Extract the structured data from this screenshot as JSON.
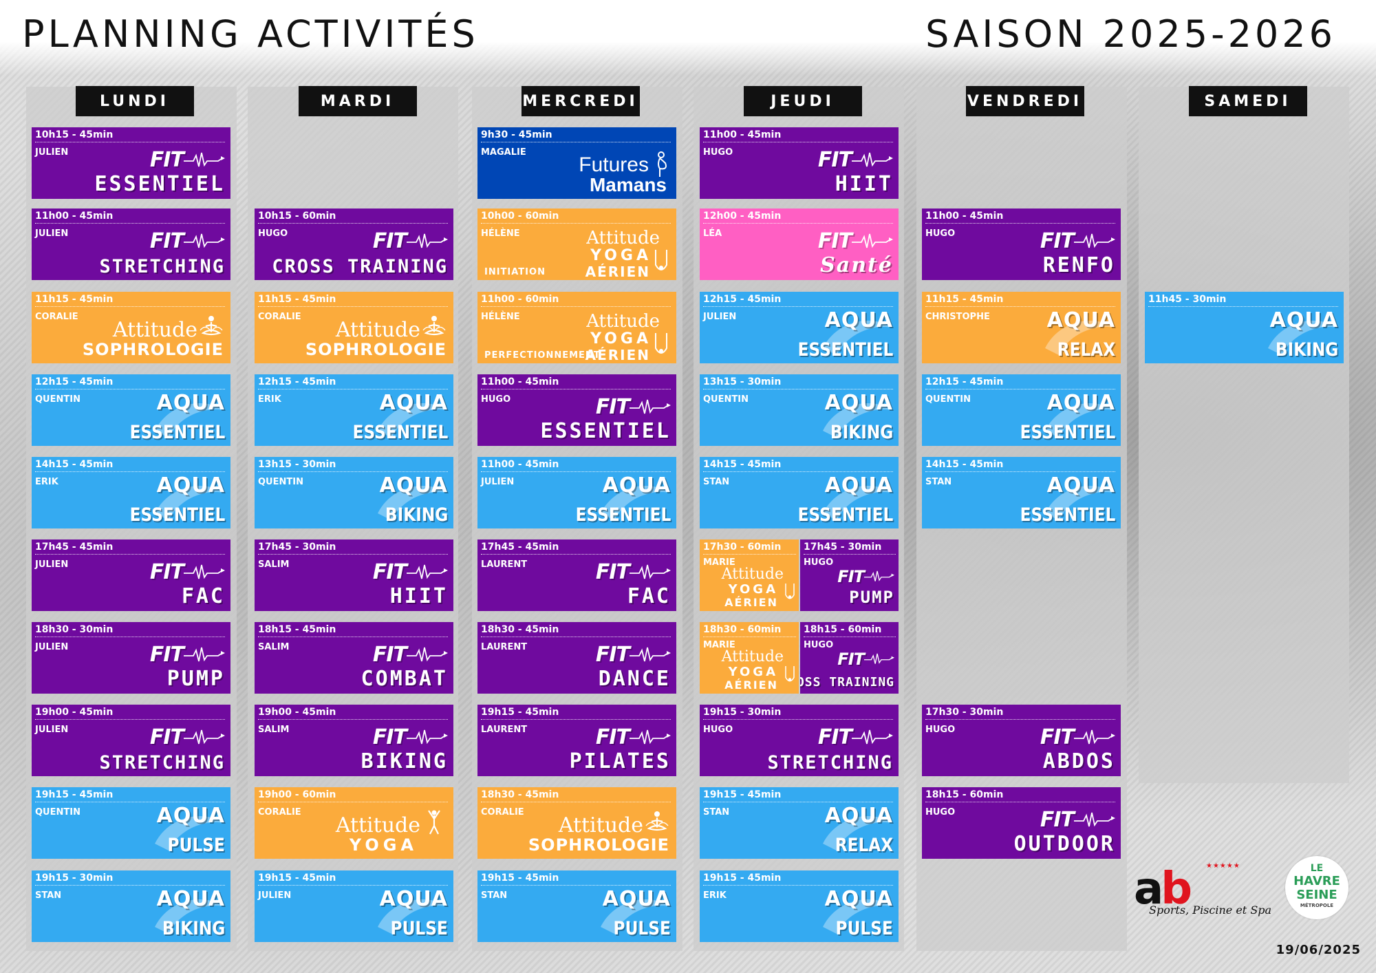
{
  "header": {
    "title_left": "PLANNING ACTIVITÉS",
    "title_right": "SAISON 2025-2026"
  },
  "days": [
    "LUNDI",
    "MARDI",
    "MERCREDI",
    "JEUDI",
    "VENDREDI",
    "SAMEDI"
  ],
  "colors": {
    "fit": "#6f0a9e",
    "attitude": "#fbab3c",
    "aqua": "#34aaf1",
    "sante": "#ff5fc3",
    "futures_mamans": "#0046b5"
  },
  "brand_words": {
    "fit": "FIT",
    "aqua": "AQUA",
    "attitude": "Attitude",
    "futures": "Futures",
    "mamans": "Mamans",
    "yoga": "YOGA",
    "aerien": "AÉRIEN"
  },
  "cards": [
    {
      "day": 0,
      "slot": 0,
      "type": "fit",
      "time": "10h15 - 45min",
      "coach": "JULIEN",
      "name": "ESSENTIEL"
    },
    {
      "day": 0,
      "slot": 1,
      "type": "fit",
      "time": "11h00 - 45min",
      "coach": "JULIEN",
      "name": "STRETCHING"
    },
    {
      "day": 0,
      "slot": 2,
      "type": "att",
      "time": "11h15 - 45min",
      "coach": "CORALIE",
      "name": "SOPHROLOGIE",
      "icon": "lotus-icon"
    },
    {
      "day": 0,
      "slot": 3,
      "type": "aqua",
      "time": "12h15 - 45min",
      "coach": "QUENTIN",
      "name": "ESSENTIEL"
    },
    {
      "day": 0,
      "slot": 4,
      "type": "aqua",
      "time": "14h15 - 45min",
      "coach": "ERIK",
      "name": "ESSENTIEL"
    },
    {
      "day": 0,
      "slot": 5,
      "type": "fit",
      "time": "17h45 - 45min",
      "coach": "JULIEN",
      "name": "FAC"
    },
    {
      "day": 0,
      "slot": 6,
      "type": "fit",
      "time": "18h30 - 30min",
      "coach": "JULIEN",
      "name": "PUMP"
    },
    {
      "day": 0,
      "slot": 7,
      "type": "fit",
      "time": "19h00 - 45min",
      "coach": "JULIEN",
      "name": "STRETCHING"
    },
    {
      "day": 0,
      "slot": 8,
      "type": "aqua",
      "time": "19h15 - 45min",
      "coach": "QUENTIN",
      "name": "PULSE"
    },
    {
      "day": 0,
      "slot": 9,
      "type": "aqua",
      "time": "19h15 - 30min",
      "coach": "STAN",
      "name": "BIKING"
    },
    {
      "day": 1,
      "slot": 1,
      "type": "fit",
      "time": "10h15 - 60min",
      "coach": "HUGO",
      "name": "CROSS TRAINING"
    },
    {
      "day": 1,
      "slot": 2,
      "type": "att",
      "time": "11h15 - 45min",
      "coach": "CORALIE",
      "name": "SOPHROLOGIE",
      "icon": "lotus-icon"
    },
    {
      "day": 1,
      "slot": 3,
      "type": "aqua",
      "time": "12h15 - 45min",
      "coach": "ERIK",
      "name": "ESSENTIEL"
    },
    {
      "day": 1,
      "slot": 4,
      "type": "aqua",
      "time": "13h15 - 30min",
      "coach": "QUENTIN",
      "name": "BIKING"
    },
    {
      "day": 1,
      "slot": 5,
      "type": "fit",
      "time": "17h45 - 30min",
      "coach": "SALIM",
      "name": "HIIT"
    },
    {
      "day": 1,
      "slot": 6,
      "type": "fit",
      "time": "18h15 - 45min",
      "coach": "SALIM",
      "name": "COMBAT"
    },
    {
      "day": 1,
      "slot": 7,
      "type": "fit",
      "time": "19h00 - 45min",
      "coach": "SALIM",
      "name": "BIKING"
    },
    {
      "day": 1,
      "slot": 8,
      "type": "att",
      "time": "19h00 - 60min",
      "coach": "CORALIE",
      "name": "YOGA",
      "icon": "yoga-pose-icon"
    },
    {
      "day": 1,
      "slot": 9,
      "type": "aqua",
      "time": "19h15 - 45min",
      "coach": "JULIEN",
      "name": "PULSE"
    },
    {
      "day": 2,
      "slot": 0,
      "type": "mamans",
      "time": "9h30 - 45min",
      "coach": "MAGALIE"
    },
    {
      "day": 2,
      "slot": 1,
      "type": "yoga",
      "time": "10h00 - 60min",
      "coach": "HÉLÈNE",
      "sub": "INITIATION"
    },
    {
      "day": 2,
      "slot": 2,
      "type": "yoga",
      "time": "11h00 - 60min",
      "coach": "HÉLÈNE",
      "sub": "PERFECTIONNEMENT"
    },
    {
      "day": 2,
      "slot": 3,
      "type": "fit",
      "time": "11h00 - 45min",
      "coach": "HUGO",
      "name": "ESSENTIEL"
    },
    {
      "day": 2,
      "slot": 4,
      "type": "aqua",
      "time": "11h00 - 45min",
      "coach": "JULIEN",
      "name": "ESSENTIEL"
    },
    {
      "day": 2,
      "slot": 5,
      "type": "fit",
      "time": "17h45 - 45min",
      "coach": "LAURENT",
      "name": "FAC"
    },
    {
      "day": 2,
      "slot": 6,
      "type": "fit",
      "time": "18h30 - 45min",
      "coach": "LAURENT",
      "name": "DANCE"
    },
    {
      "day": 2,
      "slot": 7,
      "type": "fit",
      "time": "19h15 - 45min",
      "coach": "LAURENT",
      "name": "PILATES"
    },
    {
      "day": 2,
      "slot": 8,
      "type": "att",
      "time": "18h30 - 45min",
      "coach": "CORALIE",
      "name": "SOPHROLOGIE",
      "icon": "lotus-icon"
    },
    {
      "day": 2,
      "slot": 9,
      "type": "aqua",
      "time": "19h15 - 45min",
      "coach": "STAN",
      "name": "PULSE"
    },
    {
      "day": 3,
      "slot": 0,
      "type": "fit",
      "time": "11h00 - 45min",
      "coach": "HUGO",
      "name": "HIIT"
    },
    {
      "day": 3,
      "slot": 1,
      "type": "sante",
      "time": "12h00 - 45min",
      "coach": "LÉA",
      "name": "Santé"
    },
    {
      "day": 3,
      "slot": 2,
      "type": "aqua",
      "time": "12h15 - 45min",
      "coach": "JULIEN",
      "name": "ESSENTIEL"
    },
    {
      "day": 3,
      "slot": 3,
      "type": "aqua",
      "time": "13h15 - 30min",
      "coach": "QUENTIN",
      "name": "BIKING"
    },
    {
      "day": 3,
      "slot": 4,
      "type": "aqua",
      "time": "14h15 - 45min",
      "coach": "STAN",
      "name": "ESSENTIEL"
    },
    {
      "day": 3,
      "slot": 5,
      "type": "yoga",
      "half": "left",
      "time": "17h30 - 60min",
      "coach": "MARIE"
    },
    {
      "day": 3,
      "slot": 5,
      "type": "fit",
      "half": "right",
      "time": "17h45 - 30min",
      "coach": "HUGO",
      "name": "PUMP"
    },
    {
      "day": 3,
      "slot": 6,
      "type": "yoga",
      "half": "left",
      "time": "18h30 - 60min",
      "coach": "MARIE"
    },
    {
      "day": 3,
      "slot": 6,
      "type": "fit",
      "half": "right",
      "time": "18h15 - 60min",
      "coach": "HUGO",
      "name": "CROSS TRAINING"
    },
    {
      "day": 3,
      "slot": 7,
      "type": "fit",
      "time": "19h15 - 30min",
      "coach": "HUGO",
      "name": "STRETCHING"
    },
    {
      "day": 3,
      "slot": 8,
      "type": "aqua",
      "time": "19h15 - 45min",
      "coach": "STAN",
      "name": "RELAX"
    },
    {
      "day": 3,
      "slot": 9,
      "type": "aqua",
      "time": "19h15 - 45min",
      "coach": "ERIK",
      "name": "PULSE"
    },
    {
      "day": 4,
      "slot": 1,
      "type": "fit",
      "time": "11h00 - 45min",
      "coach": "HUGO",
      "name": "RENFO"
    },
    {
      "day": 4,
      "slot": 2,
      "type": "aquaorange",
      "time": "11h15 - 45min",
      "coach": "CHRISTOPHE",
      "name": "RELAX"
    },
    {
      "day": 4,
      "slot": 3,
      "type": "aqua",
      "time": "12h15 - 45min",
      "coach": "QUENTIN",
      "name": "ESSENTIEL"
    },
    {
      "day": 4,
      "slot": 4,
      "type": "aqua",
      "time": "14h15 - 45min",
      "coach": "STAN",
      "name": "ESSENTIEL"
    },
    {
      "day": 4,
      "slot": 7,
      "type": "fit",
      "time": "17h30 - 30min",
      "coach": "HUGO",
      "name": "ABDOS"
    },
    {
      "day": 4,
      "slot": 8,
      "type": "fit",
      "time": "18h15 - 60min",
      "coach": "HUGO",
      "name": "OUTDOOR"
    },
    {
      "day": 5,
      "slot": 2,
      "type": "aqua",
      "time": "11h45 - 30min",
      "coach": "",
      "name": "BIKING"
    }
  ],
  "logos": {
    "ab_letters_a": "a",
    "ab_letters_b": "b",
    "ab_tagline": "Sports, Piscine et Spa",
    "lh_line1": "LE",
    "lh_line2": "HAVRE",
    "lh_line3": "SEINE",
    "lh_line4": "MÉTROPOLE"
  },
  "footer": {
    "date": "19/06/2025"
  }
}
